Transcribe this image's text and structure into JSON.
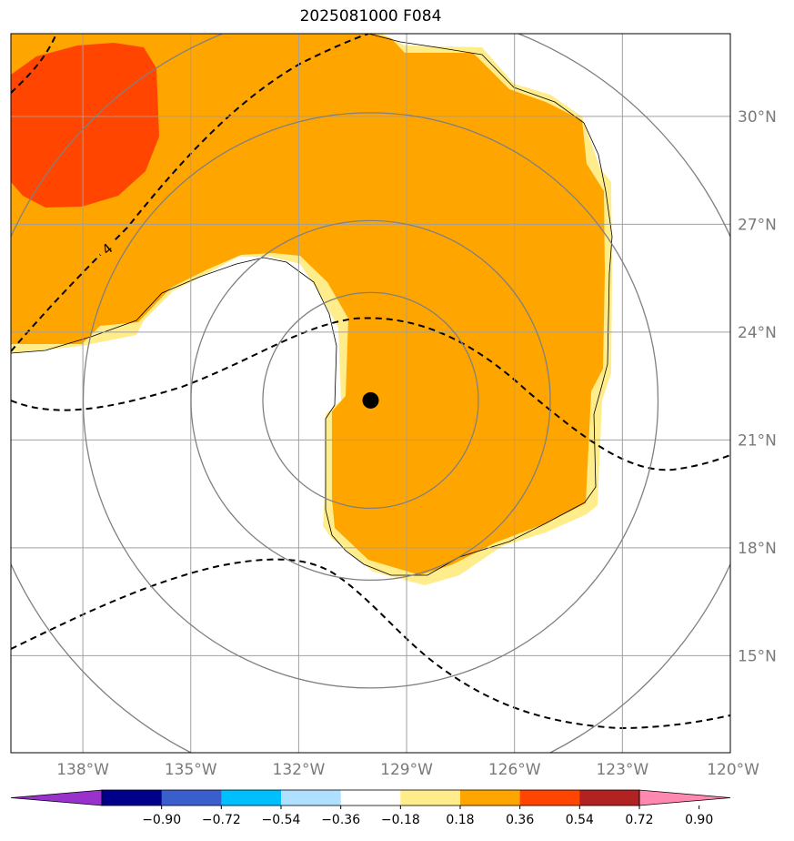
{
  "title": "2025081000 F084",
  "map": {
    "lat_ticks": [
      {
        "label": "30°N",
        "value": 30
      },
      {
        "label": "27°N",
        "value": 27
      },
      {
        "label": "24°N",
        "value": 24
      },
      {
        "label": "21°N",
        "value": 21
      },
      {
        "label": "18°N",
        "value": 18
      },
      {
        "label": "15°N",
        "value": 15
      }
    ],
    "lon_ticks": [
      {
        "label": "138°W",
        "value": -138
      },
      {
        "label": "135°W",
        "value": -135
      },
      {
        "label": "132°W",
        "value": -132
      },
      {
        "label": "129°W",
        "value": -129
      },
      {
        "label": "126°W",
        "value": -126
      },
      {
        "label": "123°W",
        "value": -123
      },
      {
        "label": "120°W",
        "value": -120
      }
    ],
    "extent": {
      "lon_min": -140,
      "lon_max": -120,
      "lat_min": 12.3,
      "lat_max": 32.3
    },
    "storm_center": {
      "lon": -130,
      "lat": 22.1
    },
    "range_rings_deg": [
      3,
      5,
      8,
      11
    ],
    "grid_color": "#a0a0a0",
    "ring_color": "#808080",
    "contour_label": "4"
  },
  "colorbar": {
    "labels": [
      "−0.90",
      "−0.72",
      "−0.54",
      "−0.36",
      "−0.18",
      "0.18",
      "0.36",
      "0.54",
      "0.72",
      "0.90"
    ],
    "colors": [
      "#9932CC",
      "#00008B",
      "#3A5FCD",
      "#00BFFF",
      "#B0E0FF",
      "#FFFFFF",
      "#FFEC8B",
      "#FFA500",
      "#FF4500",
      "#B22222",
      "#FF88B0"
    ]
  },
  "fill_colors": {
    "light": "#FFEC8B",
    "orange": "#FFA500",
    "red": "#FF4500"
  }
}
